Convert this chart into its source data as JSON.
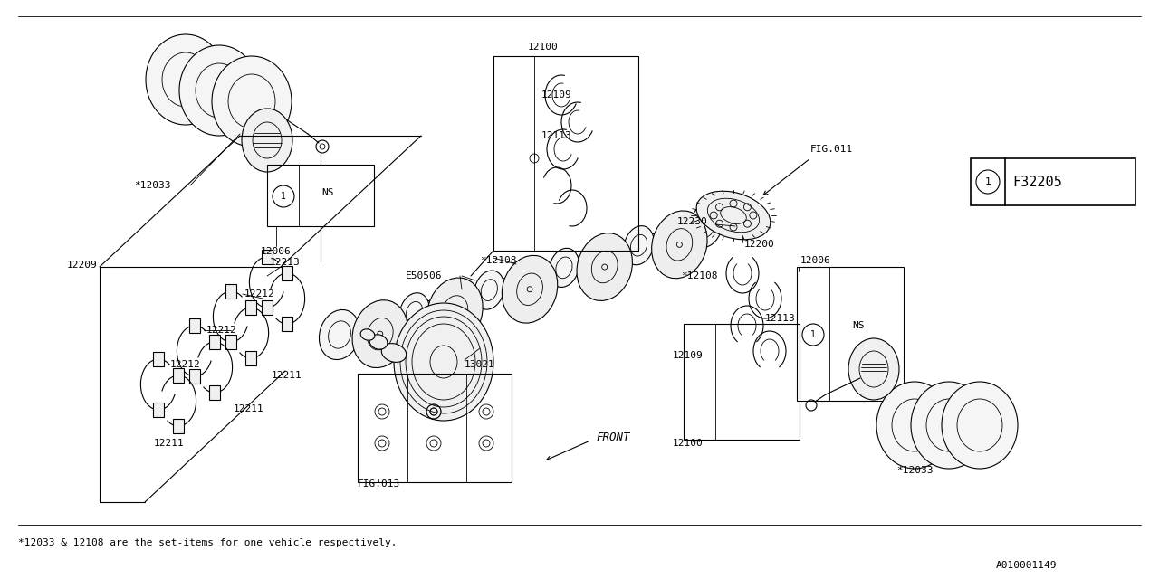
{
  "bg_color": "#ffffff",
  "line_color": "#000000",
  "fig_width": 12.8,
  "fig_height": 6.4,
  "footer_note": "*12033 & 12108 are the set-items for one vehicle respectively.",
  "bottom_right_id": "A010001149",
  "box_label": "F32205"
}
